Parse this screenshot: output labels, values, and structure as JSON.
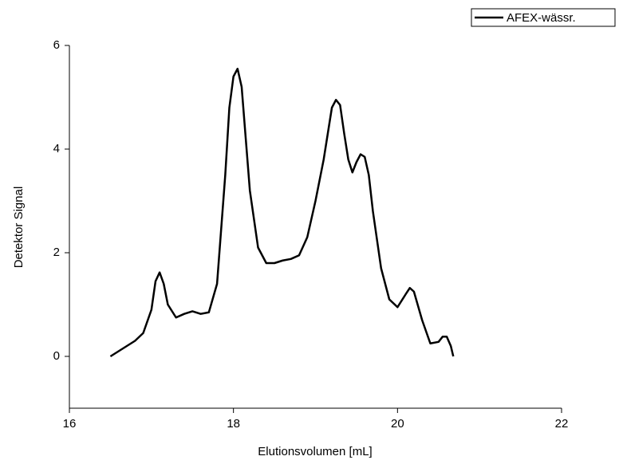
{
  "chart_data": {
    "type": "line",
    "x_label": "Elutionsvolumen [mL]",
    "y_label": "Detektor Signal",
    "series": [
      {
        "name": "AFEX-wässr.",
        "color": "#000000",
        "x": [
          16.5,
          16.6,
          16.7,
          16.8,
          16.9,
          17.0,
          17.05,
          17.1,
          17.15,
          17.2,
          17.3,
          17.4,
          17.5,
          17.6,
          17.7,
          17.8,
          17.9,
          17.95,
          18.0,
          18.05,
          18.1,
          18.15,
          18.2,
          18.3,
          18.4,
          18.5,
          18.6,
          18.7,
          18.8,
          18.9,
          19.0,
          19.1,
          19.2,
          19.25,
          19.3,
          19.35,
          19.4,
          19.45,
          19.5,
          19.55,
          19.6,
          19.65,
          19.7,
          19.8,
          19.9,
          20.0,
          20.1,
          20.15,
          20.2,
          20.3,
          20.4,
          20.5,
          20.55,
          20.6,
          20.65,
          20.68
        ],
        "values": [
          0.0,
          0.1,
          0.2,
          0.3,
          0.45,
          0.9,
          1.45,
          1.62,
          1.4,
          1.0,
          0.75,
          0.82,
          0.87,
          0.82,
          0.85,
          1.4,
          3.5,
          4.8,
          5.4,
          5.55,
          5.2,
          4.2,
          3.2,
          2.1,
          1.8,
          1.8,
          1.85,
          1.88,
          1.95,
          2.3,
          3.0,
          3.8,
          4.8,
          4.95,
          4.85,
          4.3,
          3.8,
          3.55,
          3.75,
          3.9,
          3.85,
          3.5,
          2.8,
          1.7,
          1.1,
          0.95,
          1.2,
          1.32,
          1.25,
          0.7,
          0.25,
          0.28,
          0.38,
          0.38,
          0.2,
          0.0
        ]
      }
    ],
    "xlim": [
      16,
      22
    ],
    "xticks": [
      16,
      18,
      20,
      22
    ],
    "ylim": [
      -1,
      6
    ],
    "yticks": [
      0,
      2,
      4,
      6
    ],
    "legend": "upper right"
  }
}
